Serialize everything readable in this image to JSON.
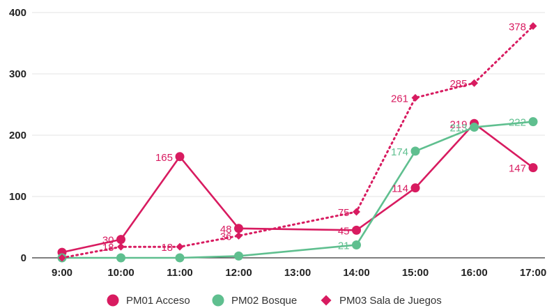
{
  "chart_data": {
    "type": "line",
    "title": "",
    "xlabel": "",
    "ylabel": "",
    "categories": [
      "9:00",
      "10:00",
      "11:00",
      "12:00",
      "13:00",
      "14:00",
      "15:00",
      "16:00",
      "17:00"
    ],
    "ylim": [
      0,
      400
    ],
    "yticks": [
      0,
      100,
      200,
      300,
      400
    ],
    "grid": true,
    "legend_position": "bottom",
    "series": [
      {
        "name": "PM01 Acceso",
        "color": "#d81b60",
        "marker": "circle",
        "style": "solid",
        "values": [
          9,
          30,
          165,
          48,
          null,
          45,
          114,
          219,
          147
        ],
        "labels": [
          "",
          "30",
          "165",
          "48",
          "",
          "45",
          "114",
          "219",
          "147"
        ]
      },
      {
        "name": "PM02 Bosque",
        "color": "#5fbf8f",
        "marker": "circle",
        "style": "solid",
        "values": [
          0,
          0,
          0,
          3,
          null,
          21,
          174,
          213,
          222
        ],
        "labels": [
          "",
          "",
          "",
          "",
          "",
          "21",
          "174",
          "213",
          "222"
        ]
      },
      {
        "name": "PM03 Sala de Juegos",
        "color": "#d81b60",
        "marker": "diamond",
        "style": "dotted",
        "values": [
          0,
          18,
          18,
          36,
          null,
          75,
          261,
          285,
          378
        ],
        "labels": [
          "",
          "18",
          "18",
          "36",
          "",
          "75",
          "261",
          "285",
          "378"
        ]
      }
    ]
  }
}
